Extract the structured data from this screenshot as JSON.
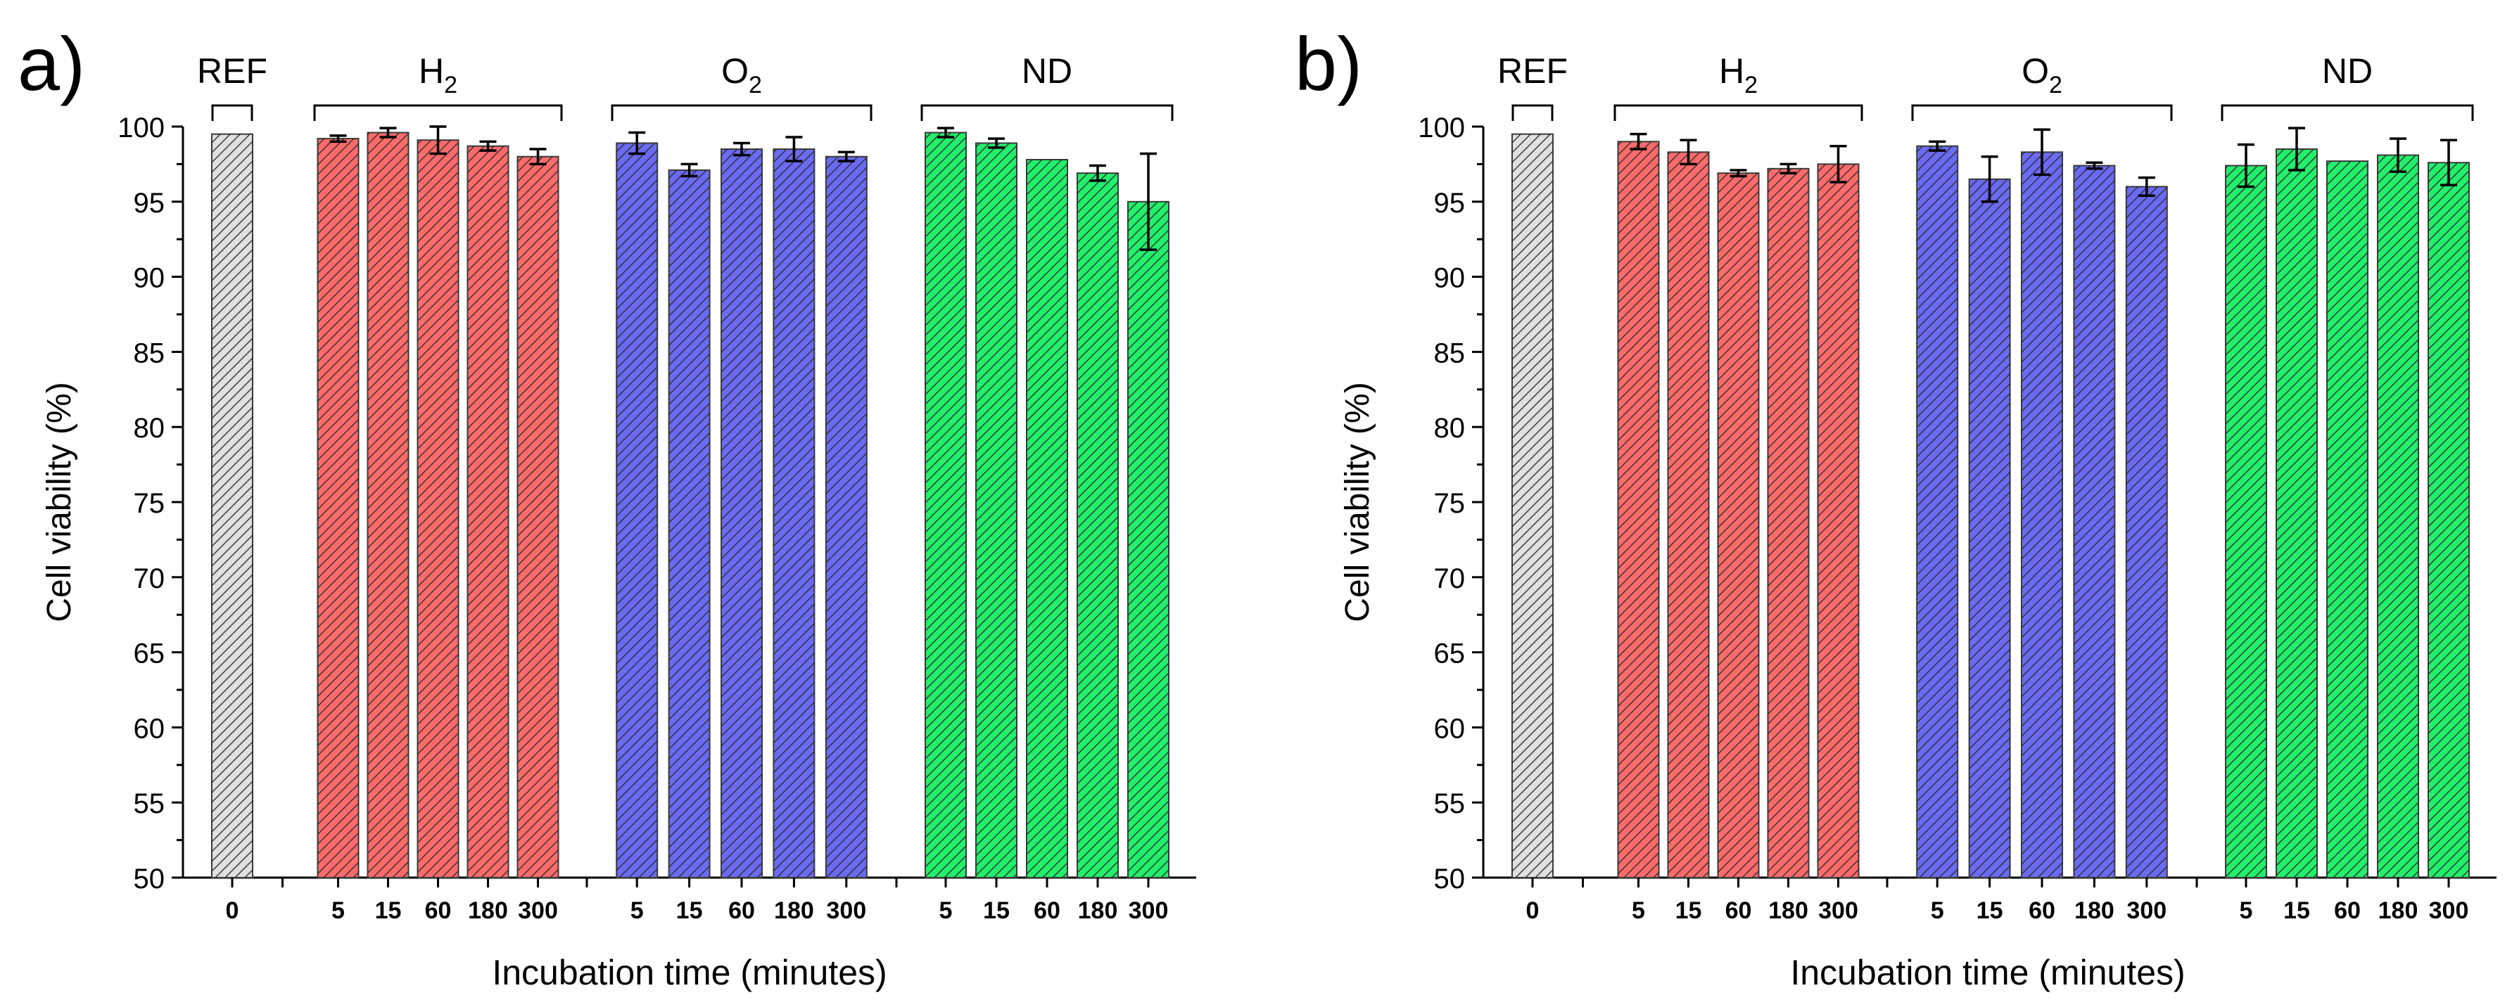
{
  "chart_data": [
    {
      "type": "bar",
      "panel_label": "a)",
      "ylabel": "Cell viability (%)",
      "xlabel": "Incubation time (minutes)",
      "ylim": [
        50,
        100
      ],
      "yticks": [
        50,
        55,
        60,
        65,
        70,
        75,
        80,
        85,
        90,
        95,
        100
      ],
      "grid": false,
      "groups": [
        {
          "name": "REF",
          "sub": "",
          "color": "#e0e0e0",
          "categories": [
            "0"
          ],
          "values": [
            99.5
          ],
          "errors": [
            0
          ]
        },
        {
          "name": "H",
          "sub": "2",
          "color": "#ff6b6b",
          "categories": [
            "5",
            "15",
            "60",
            "180",
            "300"
          ],
          "values": [
            99.2,
            99.6,
            99.1,
            98.7,
            98.0
          ],
          "errors": [
            0.2,
            0.3,
            0.9,
            0.3,
            0.5
          ]
        },
        {
          "name": "O",
          "sub": "2",
          "color": "#6a6af2",
          "categories": [
            "5",
            "15",
            "60",
            "180",
            "300"
          ],
          "values": [
            98.9,
            97.1,
            98.5,
            98.5,
            98.0
          ],
          "errors": [
            0.7,
            0.4,
            0.4,
            0.8,
            0.3
          ]
        },
        {
          "name": "ND",
          "sub": "",
          "color": "#22f06b",
          "categories": [
            "5",
            "15",
            "60",
            "180",
            "300"
          ],
          "values": [
            99.6,
            98.9,
            97.8,
            96.9,
            95.0
          ],
          "errors": [
            0.3,
            0.3,
            0,
            0.5,
            3.2
          ]
        }
      ]
    },
    {
      "type": "bar",
      "panel_label": "b)",
      "ylabel": "Cell viability (%)",
      "xlabel": "Incubation time (minutes)",
      "ylim": [
        50,
        100
      ],
      "yticks": [
        50,
        55,
        60,
        65,
        70,
        75,
        80,
        85,
        90,
        95,
        100
      ],
      "grid": false,
      "groups": [
        {
          "name": "REF",
          "sub": "",
          "color": "#e0e0e0",
          "categories": [
            "0"
          ],
          "values": [
            99.5
          ],
          "errors": [
            0
          ]
        },
        {
          "name": "H",
          "sub": "2",
          "color": "#ff6b6b",
          "categories": [
            "5",
            "15",
            "60",
            "180",
            "300"
          ],
          "values": [
            99.0,
            98.3,
            96.9,
            97.2,
            97.5
          ],
          "errors": [
            0.5,
            0.8,
            0.2,
            0.3,
            1.2
          ]
        },
        {
          "name": "O",
          "sub": "2",
          "color": "#6a6af2",
          "categories": [
            "5",
            "15",
            "60",
            "180",
            "300"
          ],
          "values": [
            98.7,
            96.5,
            98.3,
            97.4,
            96.0
          ],
          "errors": [
            0.3,
            1.5,
            1.5,
            0.2,
            0.6
          ]
        },
        {
          "name": "ND",
          "sub": "",
          "color": "#22f06b",
          "categories": [
            "5",
            "15",
            "60",
            "180",
            "300"
          ],
          "values": [
            97.4,
            98.5,
            97.7,
            98.1,
            97.6
          ],
          "errors": [
            1.4,
            1.4,
            0,
            1.1,
            1.5
          ]
        }
      ]
    }
  ]
}
